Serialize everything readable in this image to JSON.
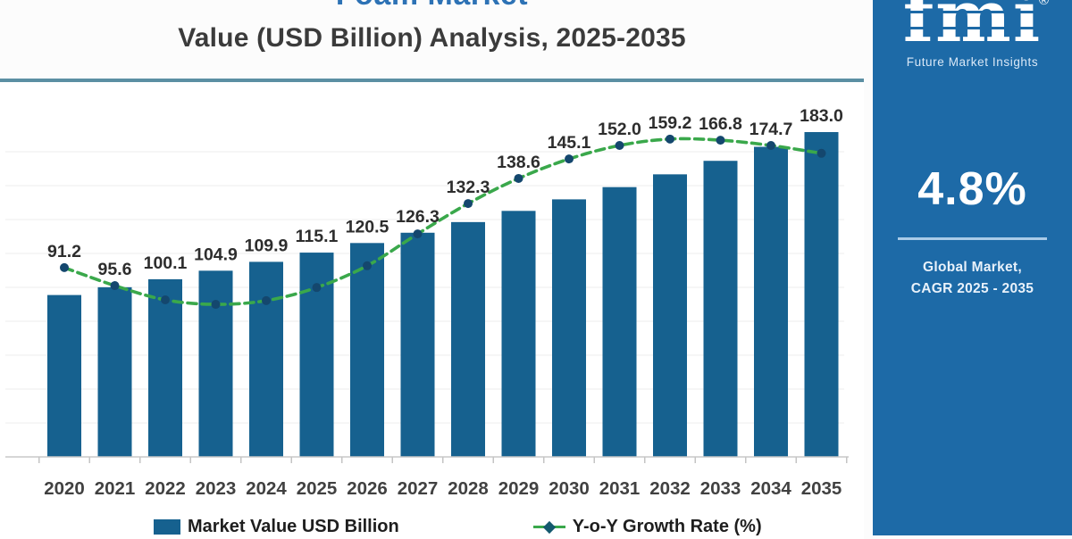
{
  "header": {
    "title_line1": "Foam Market",
    "title_line2": "Value (USD Billion) Analysis, 2025-2035"
  },
  "brand": {
    "logo_text": "fmi",
    "registered_mark": "®",
    "tagline": "Future Market Insights"
  },
  "kpi_panel": {
    "cagr_value": "4.8%",
    "caption_line1": "Global Market,",
    "caption_line2": "CAGR 2025 - 2035",
    "bg_color": "#1d6aa7"
  },
  "legend": {
    "bar_label": "Market Value USD Billion",
    "line_label": "Y-o-Y Growth Rate (%)"
  },
  "colors": {
    "bar": "#16618f",
    "line_green": "#3aa84b",
    "marker_navy": "#14476e",
    "panel_blue": "#1d6aa7",
    "title_blue": "#2d72b5",
    "panel_top_border": "#5b8fa3"
  },
  "chart_data": {
    "type": "bar",
    "title": "Foam Market Value (USD Billion) Analysis, 2025-2035",
    "categories": [
      "2020",
      "2021",
      "2022",
      "2023",
      "2024",
      "2025",
      "2026",
      "2027",
      "2028",
      "2029",
      "2030",
      "2031",
      "2032",
      "2033",
      "2034",
      "2035"
    ],
    "series": [
      {
        "name": "Market Value USD Billion",
        "type": "bar",
        "color": "#16618f",
        "values": [
          91.2,
          95.6,
          100.1,
          104.9,
          109.9,
          115.1,
          120.5,
          126.3,
          132.3,
          138.6,
          145.1,
          152.0,
          159.2,
          166.8,
          174.7,
          183.0
        ],
        "labels": [
          "91.2",
          "95.6",
          "100.1",
          "104.9",
          "109.9",
          "115.1",
          "120.5",
          "126.3",
          "132.3",
          "138.6",
          "145.1",
          "152.0",
          "159.2",
          "166.8",
          "174.7",
          "183.0"
        ]
      },
      {
        "name": "Y-o-Y Growth Rate (%)",
        "type": "line",
        "color": "#3aa84b",
        "marker_color": "#14476e",
        "axis": "secondary (no tick labels shown)",
        "values_visual_rel": [
          0.505,
          0.457,
          0.419,
          0.407,
          0.417,
          0.452,
          0.51,
          0.595,
          0.676,
          0.743,
          0.795,
          0.831,
          0.848,
          0.845,
          0.831,
          0.81
        ]
      }
    ],
    "xlabel": "",
    "ylabel": "",
    "value_axis_ticks_visible": false,
    "grid": true,
    "legend_position": "bottom"
  }
}
